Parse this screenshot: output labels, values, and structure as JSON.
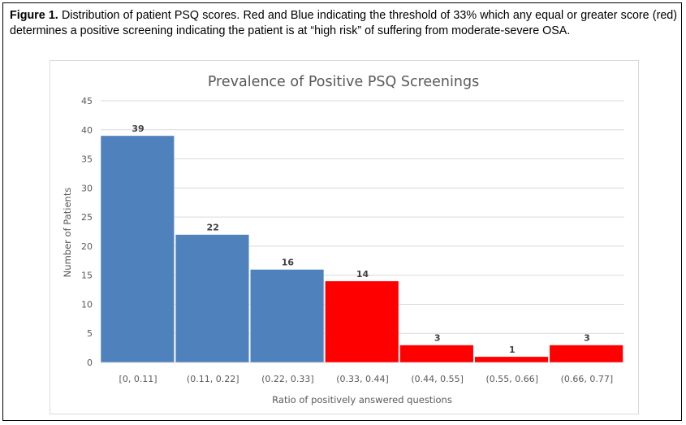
{
  "figure": {
    "caption_label": "Figure 1.",
    "caption_text": " Distribution of patient PSQ scores. Red and Blue indicating the threshold of 33% which any equal or greater score (red) determines a positive screening indicating the patient is at “high risk” of suffering from moderate-severe OSA."
  },
  "chart_data": {
    "type": "bar",
    "title": "Prevalence of Positive PSQ Screenings",
    "xlabel": "Ratio of positively answered questions",
    "ylabel": "Number of Patients",
    "categories": [
      "[0, 0.11]",
      "(0.11, 0.22]",
      "(0.22, 0.33]",
      "(0.33, 0.44]",
      "(0.44, 0.55]",
      "(0.55, 0.66]",
      "(0.66, 0.77]"
    ],
    "values": [
      39,
      22,
      16,
      14,
      3,
      1,
      3
    ],
    "colors": [
      "#4f81bd",
      "#4f81bd",
      "#4f81bd",
      "#ff0000",
      "#ff0000",
      "#ff0000",
      "#ff0000"
    ],
    "ylim": [
      0,
      45
    ],
    "yticks": [
      0,
      5,
      10,
      15,
      20,
      25,
      30,
      35,
      40,
      45
    ],
    "grid": true,
    "data_labels": true
  }
}
